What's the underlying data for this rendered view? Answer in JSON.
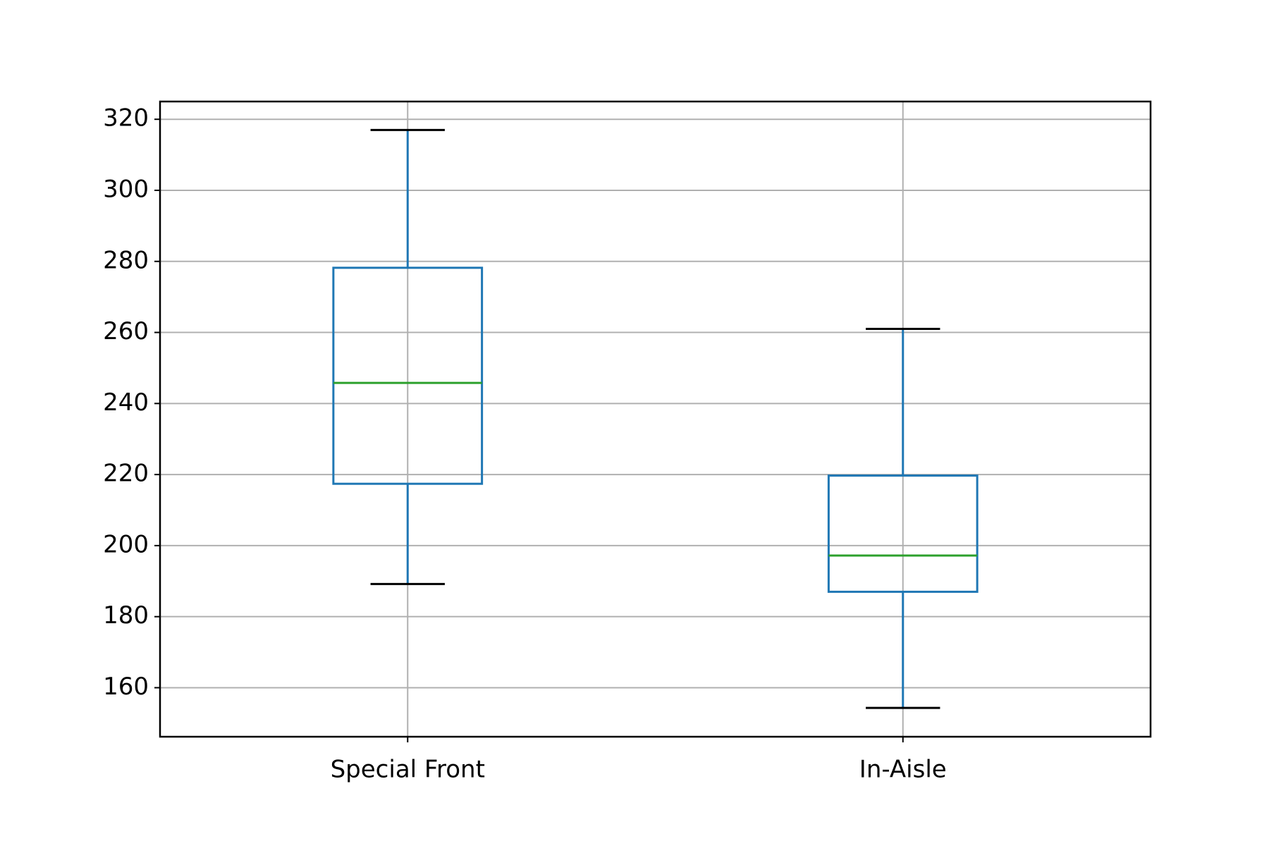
{
  "chart_data": {
    "type": "box",
    "categories": [
      "Special Front",
      "In-Aisle"
    ],
    "boxes": [
      {
        "whislo": 189.2,
        "q1": 217.4,
        "med": 245.8,
        "q3": 278.2,
        "whishi": 317.0
      },
      {
        "whislo": 154.3,
        "q1": 187.0,
        "med": 197.2,
        "q3": 219.7,
        "whishi": 261.0
      }
    ],
    "box_color": "#1f77b4",
    "median_color": "#2ca02c",
    "cap_color": "#000000",
    "ylim": [
      146.2,
      325
    ],
    "yticks": [
      160,
      180,
      200,
      220,
      240,
      260,
      280,
      300,
      320
    ],
    "grid": true
  }
}
